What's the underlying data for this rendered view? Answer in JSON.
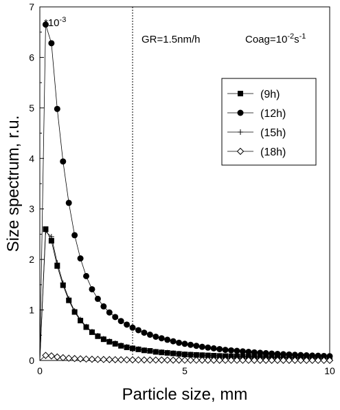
{
  "chart_data": {
    "type": "line",
    "xlabel": "Particle size, mm",
    "ylabel": "Size spectrum, r.u.",
    "xlim": [
      0,
      10
    ],
    "ylim": [
      0,
      7
    ],
    "xticks": [
      0,
      5,
      10
    ],
    "yticks": [
      0,
      1,
      2,
      3,
      4,
      5,
      6,
      7
    ],
    "scale_note": {
      "prefix": "*10",
      "exp": "-3"
    },
    "annotations": {
      "gr": "GR=1.5nm/h",
      "coag_base": "Coag=10",
      "coag_exp1": "-2",
      "coag_unit": "s",
      "coag_exp2": "-1"
    },
    "vline_x": 3.2,
    "legend_position": "right",
    "series": [
      {
        "name": "(9h)",
        "marker": "square",
        "points": [
          [
            0.0,
            0.0
          ],
          [
            0.2,
            2.6
          ],
          [
            0.4,
            2.37
          ],
          [
            0.6,
            1.87
          ],
          [
            0.8,
            1.49
          ],
          [
            1.0,
            1.19
          ],
          [
            1.2,
            0.96
          ],
          [
            1.4,
            0.79
          ],
          [
            1.6,
            0.66
          ],
          [
            1.8,
            0.56
          ],
          [
            2.0,
            0.48
          ],
          [
            2.2,
            0.42
          ],
          [
            2.4,
            0.37
          ],
          [
            2.6,
            0.33
          ],
          [
            2.8,
            0.29
          ],
          [
            3.0,
            0.26
          ],
          [
            3.2,
            0.24
          ],
          [
            3.4,
            0.22
          ],
          [
            3.6,
            0.2
          ],
          [
            3.8,
            0.19
          ],
          [
            4.0,
            0.17
          ],
          [
            4.2,
            0.16
          ],
          [
            4.4,
            0.15
          ],
          [
            4.6,
            0.14
          ],
          [
            4.8,
            0.13
          ],
          [
            5.0,
            0.12
          ],
          [
            5.2,
            0.115
          ],
          [
            5.4,
            0.11
          ],
          [
            5.6,
            0.105
          ],
          [
            5.8,
            0.1
          ],
          [
            6.0,
            0.095
          ],
          [
            6.2,
            0.09
          ],
          [
            6.4,
            0.087
          ],
          [
            6.6,
            0.083
          ],
          [
            6.8,
            0.08
          ],
          [
            7.0,
            0.077
          ],
          [
            7.2,
            0.074
          ],
          [
            7.4,
            0.071
          ],
          [
            7.6,
            0.069
          ],
          [
            7.8,
            0.066
          ],
          [
            8.0,
            0.064
          ],
          [
            8.2,
            0.062
          ],
          [
            8.4,
            0.06
          ],
          [
            8.6,
            0.058
          ],
          [
            8.8,
            0.056
          ],
          [
            9.0,
            0.055
          ],
          [
            9.2,
            0.053
          ],
          [
            9.4,
            0.052
          ],
          [
            9.6,
            0.05
          ],
          [
            9.8,
            0.049
          ],
          [
            10.0,
            0.048
          ]
        ]
      },
      {
        "name": "(12h)",
        "marker": "circle",
        "points": [
          [
            0.0,
            0.0
          ],
          [
            0.2,
            6.65
          ],
          [
            0.4,
            6.28
          ],
          [
            0.6,
            4.98
          ],
          [
            0.8,
            3.94
          ],
          [
            1.0,
            3.12
          ],
          [
            1.2,
            2.48
          ],
          [
            1.4,
            2.02
          ],
          [
            1.6,
            1.67
          ],
          [
            1.8,
            1.41
          ],
          [
            2.0,
            1.22
          ],
          [
            2.2,
            1.07
          ],
          [
            2.4,
            0.95
          ],
          [
            2.6,
            0.86
          ],
          [
            2.8,
            0.78
          ],
          [
            3.0,
            0.71
          ],
          [
            3.2,
            0.65
          ],
          [
            3.4,
            0.6
          ],
          [
            3.6,
            0.55
          ],
          [
            3.8,
            0.51
          ],
          [
            4.0,
            0.47
          ],
          [
            4.2,
            0.44
          ],
          [
            4.4,
            0.41
          ],
          [
            4.6,
            0.38
          ],
          [
            4.8,
            0.35
          ],
          [
            5.0,
            0.33
          ],
          [
            5.2,
            0.31
          ],
          [
            5.4,
            0.29
          ],
          [
            5.6,
            0.27
          ],
          [
            5.8,
            0.255
          ],
          [
            6.0,
            0.24
          ],
          [
            6.2,
            0.225
          ],
          [
            6.4,
            0.21
          ],
          [
            6.6,
            0.2
          ],
          [
            6.8,
            0.19
          ],
          [
            7.0,
            0.18
          ],
          [
            7.2,
            0.17
          ],
          [
            7.4,
            0.16
          ],
          [
            7.6,
            0.152
          ],
          [
            7.8,
            0.144
          ],
          [
            8.0,
            0.137
          ],
          [
            8.2,
            0.13
          ],
          [
            8.4,
            0.124
          ],
          [
            8.6,
            0.118
          ],
          [
            8.8,
            0.112
          ],
          [
            9.0,
            0.107
          ],
          [
            9.2,
            0.102
          ],
          [
            9.4,
            0.097
          ],
          [
            9.6,
            0.093
          ],
          [
            9.8,
            0.089
          ],
          [
            10.0,
            0.085
          ]
        ]
      },
      {
        "name": "(15h)",
        "marker": "plus",
        "points": [
          [
            0.0,
            0.0
          ],
          [
            0.2,
            2.55
          ],
          [
            0.4,
            2.45
          ],
          [
            0.6,
            1.93
          ],
          [
            0.8,
            1.53
          ],
          [
            1.0,
            1.22
          ],
          [
            1.2,
            0.98
          ],
          [
            1.4,
            0.81
          ],
          [
            1.6,
            0.67
          ],
          [
            1.8,
            0.57
          ],
          [
            2.0,
            0.49
          ],
          [
            2.2,
            0.43
          ],
          [
            2.4,
            0.38
          ],
          [
            2.6,
            0.34
          ],
          [
            2.8,
            0.3
          ],
          [
            3.0,
            0.27
          ],
          [
            3.2,
            0.245
          ],
          [
            3.4,
            0.225
          ],
          [
            3.6,
            0.205
          ],
          [
            3.8,
            0.19
          ],
          [
            4.0,
            0.175
          ],
          [
            4.2,
            0.165
          ],
          [
            4.4,
            0.155
          ],
          [
            4.6,
            0.145
          ],
          [
            4.8,
            0.135
          ],
          [
            5.0,
            0.125
          ],
          [
            5.2,
            0.118
          ],
          [
            5.4,
            0.112
          ],
          [
            5.6,
            0.106
          ],
          [
            5.8,
            0.1
          ],
          [
            6.0,
            0.096
          ],
          [
            6.2,
            0.091
          ],
          [
            6.4,
            0.087
          ],
          [
            6.6,
            0.083
          ],
          [
            6.8,
            0.08
          ],
          [
            7.0,
            0.077
          ],
          [
            7.2,
            0.074
          ],
          [
            7.4,
            0.071
          ],
          [
            7.6,
            0.069
          ],
          [
            7.8,
            0.066
          ],
          [
            8.0,
            0.064
          ],
          [
            8.2,
            0.062
          ],
          [
            8.4,
            0.06
          ],
          [
            8.6,
            0.058
          ],
          [
            8.8,
            0.056
          ],
          [
            9.0,
            0.055
          ],
          [
            9.2,
            0.053
          ],
          [
            9.4,
            0.052
          ],
          [
            9.6,
            0.05
          ],
          [
            9.8,
            0.049
          ],
          [
            10.0,
            0.048
          ]
        ]
      },
      {
        "name": "(18h)",
        "marker": "diamond",
        "points": [
          [
            0.0,
            0.0
          ],
          [
            0.2,
            0.1
          ],
          [
            0.4,
            0.09
          ],
          [
            0.6,
            0.07
          ],
          [
            0.8,
            0.055
          ],
          [
            1.0,
            0.045
          ],
          [
            1.2,
            0.038
          ],
          [
            1.4,
            0.032
          ],
          [
            1.6,
            0.028
          ],
          [
            1.8,
            0.024
          ],
          [
            2.0,
            0.021
          ],
          [
            2.2,
            0.019
          ],
          [
            2.4,
            0.017
          ],
          [
            2.6,
            0.015
          ],
          [
            2.8,
            0.014
          ],
          [
            3.0,
            0.013
          ],
          [
            3.2,
            0.012
          ],
          [
            3.4,
            0.011
          ],
          [
            3.6,
            0.01
          ],
          [
            3.8,
            0.009
          ],
          [
            4.0,
            0.009
          ],
          [
            4.2,
            0.008
          ],
          [
            4.4,
            0.008
          ],
          [
            4.6,
            0.007
          ],
          [
            4.8,
            0.007
          ],
          [
            5.0,
            0.006
          ],
          [
            5.2,
            0.006
          ],
          [
            5.4,
            0.006
          ],
          [
            5.6,
            0.005
          ],
          [
            5.8,
            0.005
          ],
          [
            6.0,
            0.005
          ],
          [
            6.2,
            0.005
          ],
          [
            6.4,
            0.004
          ],
          [
            6.6,
            0.004
          ],
          [
            6.8,
            0.004
          ],
          [
            7.0,
            0.004
          ],
          [
            7.2,
            0.004
          ],
          [
            7.4,
            0.003
          ],
          [
            7.6,
            0.003
          ],
          [
            7.8,
            0.003
          ],
          [
            8.0,
            0.003
          ],
          [
            8.2,
            0.003
          ],
          [
            8.4,
            0.003
          ],
          [
            8.6,
            0.003
          ],
          [
            8.8,
            0.003
          ],
          [
            9.0,
            0.002
          ],
          [
            9.2,
            0.002
          ],
          [
            9.4,
            0.002
          ],
          [
            9.6,
            0.002
          ],
          [
            9.8,
            0.002
          ],
          [
            10.0,
            0.002
          ]
        ]
      }
    ]
  }
}
